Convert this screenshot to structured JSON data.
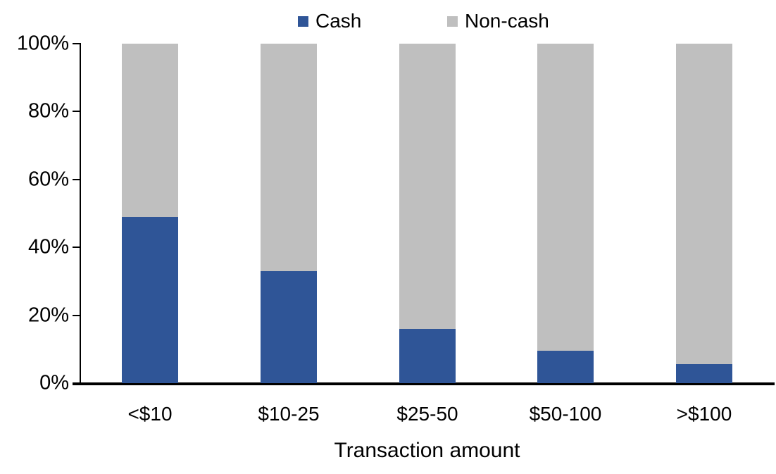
{
  "chart_data": {
    "type": "bar",
    "stacked": true,
    "orientation": "vertical",
    "categories": [
      "<$10",
      "$10-25",
      "$25-50",
      "$50-100",
      ">$100"
    ],
    "series": [
      {
        "name": "Cash",
        "color": "#2F5597",
        "values": [
          49,
          33,
          16,
          9.5,
          5.5
        ]
      },
      {
        "name": "Non-cash",
        "color": "#BFBFBF",
        "values": [
          51,
          67,
          84,
          90.5,
          94.5
        ]
      }
    ],
    "title": "",
    "xlabel": "Transaction amount",
    "ylabel": "",
    "ylim": [
      0,
      100
    ],
    "ytick_step": 20,
    "ytick_labels": [
      "0%",
      "20%",
      "40%",
      "60%",
      "80%",
      "100%"
    ],
    "legend_position": "top",
    "grid": false,
    "axis_color": "#000000",
    "background_color": "#FFFFFF"
  }
}
